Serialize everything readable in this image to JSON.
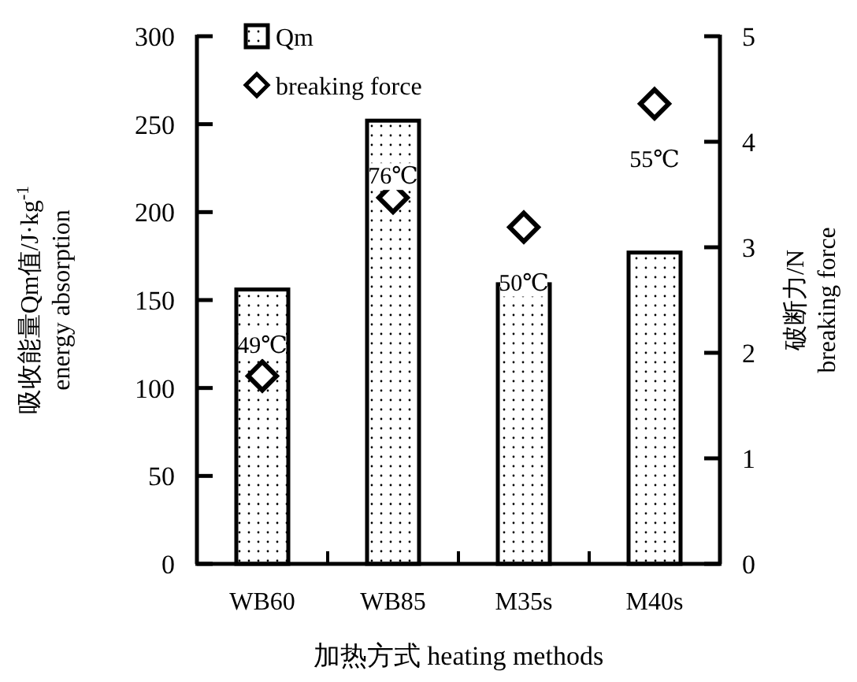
{
  "chart_data": {
    "type": "bar",
    "categories": [
      "WB60",
      "WB85",
      "M35s",
      "M40s"
    ],
    "xlabel": "加热方式 heating methods",
    "ylabel": "吸收能量Qm值/J·kg$^{-1}$ energy absorption",
    "y2label": "破断力/N breaking force",
    "series": [
      {
        "name": "Qm",
        "color": "#000000",
        "values": [
          156,
          252,
          159,
          177
        ]
      },
      {
        "name": "breaking force",
        "type": "scatter",
        "axis": "y2",
        "color": "#000000",
        "marker": "diamond",
        "values": [
          1.78,
          3.47,
          3.19,
          4.36
        ]
      }
    ],
    "ylim": [
      0,
      300
    ],
    "yticks": [
      0,
      50,
      100,
      150,
      200,
      250,
      300
    ],
    "y2lim": [
      0,
      5
    ],
    "y2ticks": [
      0,
      1,
      2,
      3,
      4,
      5
    ],
    "annotations": [
      "49℃",
      "76℃",
      "50℃",
      "55℃"
    ],
    "legend": "top left",
    "grid": false
  }
}
